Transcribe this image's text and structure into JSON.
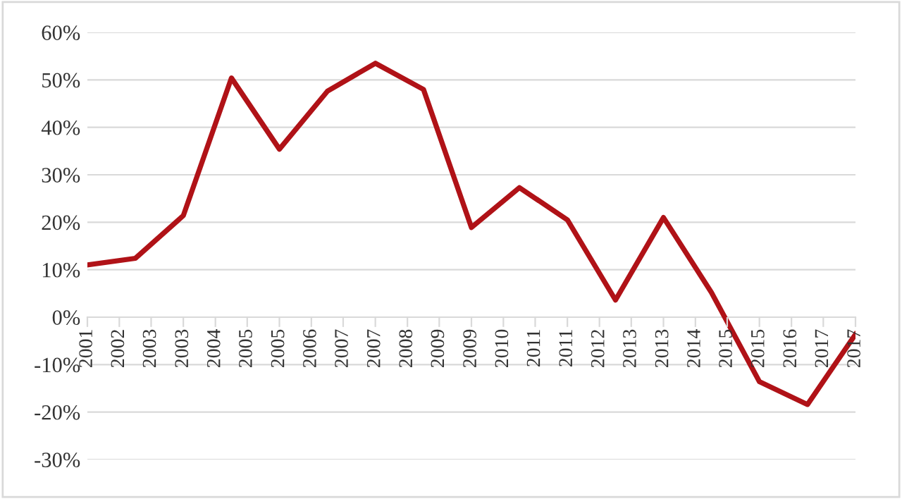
{
  "chart_data": {
    "type": "line",
    "x": [
      "2001-12-31",
      "2002-12-31",
      "2003-12-31",
      "2004-12-31",
      "2005-12-31",
      "2006-12-31",
      "2007-12-31",
      "2008-12-31",
      "2009-12-31",
      "2010-12-31",
      "2011-12-31",
      "2012-12-31",
      "2013-12-31",
      "2014-12-31",
      "2015-12-31",
      "2016-12-31",
      "2017-12-31"
    ],
    "series": [
      {
        "color": "#b01217",
        "values": [
          11.0,
          12.4,
          21.4,
          50.4,
          35.4,
          47.6,
          53.5,
          48.0,
          18.9,
          27.3,
          20.5,
          3.6,
          21.0,
          5.2,
          -13.6,
          -18.4,
          -3.6
        ]
      }
    ],
    "xlim": [
      "2001-12-31",
      "2017-12-31"
    ],
    "xticks": [
      {
        "value": "2001-12-31",
        "label": "2001"
      },
      {
        "value": "2002-08-31",
        "label": "2002"
      },
      {
        "value": "2003-04-30",
        "label": "2003"
      },
      {
        "value": "2003-12-31",
        "label": "2003"
      },
      {
        "value": "2004-08-31",
        "label": "2004"
      },
      {
        "value": "2005-04-30",
        "label": "2005"
      },
      {
        "value": "2005-12-31",
        "label": "2005"
      },
      {
        "value": "2006-08-31",
        "label": "2006"
      },
      {
        "value": "2007-04-30",
        "label": "2007"
      },
      {
        "value": "2007-12-31",
        "label": "2007"
      },
      {
        "value": "2008-08-31",
        "label": "2008"
      },
      {
        "value": "2009-04-30",
        "label": "2009"
      },
      {
        "value": "2009-12-31",
        "label": "2009"
      },
      {
        "value": "2010-08-31",
        "label": "2010"
      },
      {
        "value": "2011-04-30",
        "label": "2011"
      },
      {
        "value": "2011-12-31",
        "label": "2011"
      },
      {
        "value": "2012-08-31",
        "label": "2012"
      },
      {
        "value": "2013-04-30",
        "label": "2013"
      },
      {
        "value": "2013-12-31",
        "label": "2013"
      },
      {
        "value": "2014-08-31",
        "label": "2014"
      },
      {
        "value": "2015-04-30",
        "label": "2015"
      },
      {
        "value": "2015-12-31",
        "label": "2015"
      },
      {
        "value": "2016-08-31",
        "label": "2016"
      },
      {
        "value": "2017-04-30",
        "label": "2017"
      },
      {
        "value": "2017-12-31",
        "label": "2017"
      }
    ],
    "ylim": [
      -30,
      60
    ],
    "yticks": [
      {
        "value": -30,
        "label": "-30%"
      },
      {
        "value": -20,
        "label": "-20%"
      },
      {
        "value": -10,
        "label": "-10%"
      },
      {
        "value": 0,
        "label": "0%"
      },
      {
        "value": 10,
        "label": "10%"
      },
      {
        "value": 20,
        "label": "20%"
      },
      {
        "value": 30,
        "label": "30%"
      },
      {
        "value": 40,
        "label": "40%"
      },
      {
        "value": 50,
        "label": "50%"
      },
      {
        "value": 60,
        "label": "60%"
      }
    ],
    "grid": "y",
    "marker": "none",
    "line_style": "solid",
    "legend": false
  }
}
